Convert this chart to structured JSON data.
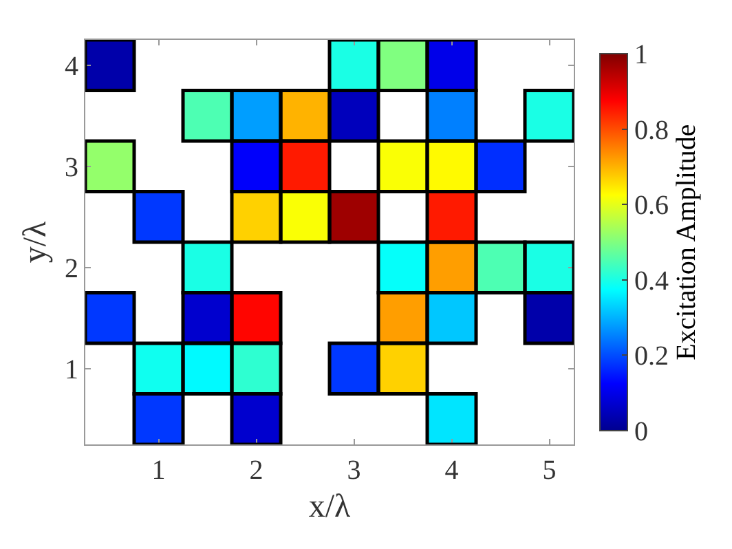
{
  "chart_data": {
    "type": "heatmap",
    "xlabel": "x/λ",
    "ylabel": "y/λ",
    "clabel": "Excitation Amplitude",
    "categories": [
      null,
      "1",
      null,
      "2",
      null,
      "3",
      null,
      "4",
      null,
      "5"
    ],
    "y_categories": [
      "4",
      null,
      "3",
      null,
      "2",
      null,
      "1",
      null
    ],
    "cells": [
      [
        0.03,
        null,
        null,
        null,
        null,
        0.4,
        0.5,
        0.1,
        null,
        null
      ],
      [
        null,
        null,
        0.45,
        0.28,
        0.7,
        0.05,
        null,
        0.25,
        null,
        0.4
      ],
      [
        0.52,
        null,
        null,
        0.12,
        0.85,
        null,
        0.62,
        0.63,
        0.17,
        null
      ],
      [
        null,
        0.18,
        null,
        0.67,
        0.62,
        0.97,
        null,
        0.85,
        null,
        null
      ],
      [
        null,
        null,
        0.4,
        null,
        null,
        null,
        0.38,
        0.72,
        0.45,
        0.4
      ],
      [
        0.18,
        null,
        0.07,
        0.87,
        null,
        null,
        0.72,
        0.32,
        null,
        0.03
      ],
      [
        null,
        0.39,
        0.37,
        0.42,
        null,
        0.18,
        0.67,
        null,
        null,
        null
      ],
      [
        null,
        0.18,
        null,
        0.07,
        null,
        null,
        null,
        0.35,
        null,
        null
      ]
    ],
    "clim": [
      0,
      1
    ],
    "cticks": [
      0,
      0.2,
      0.4,
      0.6,
      0.8,
      1
    ]
  }
}
